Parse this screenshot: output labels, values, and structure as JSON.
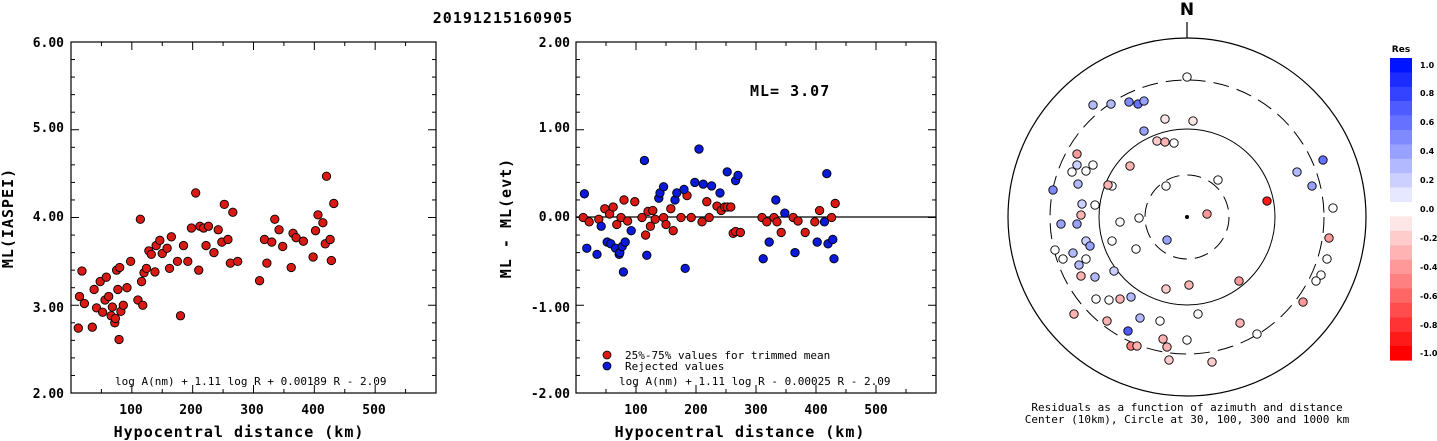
{
  "event_id": "20191215160905",
  "ml_label": "ML= 3.07",
  "colors": {
    "trimmed": "#d91a14",
    "rejected": "#0a1ad8",
    "axis": "#000000"
  },
  "left_panel": {
    "ylabel": "ML(IASPEI)",
    "xlabel": "Hypocentral distance (km)",
    "formula": "log A(nm) + 1.11 log R + 0.00189 R - 2.09",
    "ytick_labels": [
      "2.00",
      "3.00",
      "4.00",
      "5.00",
      "6.00"
    ],
    "xtick_labels": [
      "100",
      "200",
      "300",
      "400",
      "500"
    ]
  },
  "middle_panel": {
    "ylabel": "ML - ML(evt)",
    "xlabel": "Hypocentral distance (km)",
    "formula": "log A(nm) + 1.11 log R - 0.00025 R - 2.09",
    "legend_trimmed": "25%-75% values for trimmed mean",
    "legend_rejected": "Rejected values",
    "ytick_labels": [
      "-2.00",
      "-1.00",
      "0.00",
      "1.00",
      "2.00"
    ],
    "xtick_labels": [
      "100",
      "200",
      "300",
      "400",
      "500"
    ]
  },
  "polar_panel": {
    "north_label": "N",
    "caption_line1": "Residuals as a function of azimuth and distance",
    "caption_line2": "Center (10km), Circle at 30, 100, 300 and 1000 km",
    "colorbar_title": "Res",
    "colorbar_labels": [
      "1.0",
      "0.8",
      "0.6",
      "0.4",
      "0.2",
      "0.0",
      "-0.2",
      "-0.4",
      "-0.6",
      "-0.8",
      "-1.0"
    ]
  },
  "chart_data": [
    {
      "type": "scatter",
      "title": "20191215160905",
      "xlabel": "Hypocentral distance (km)",
      "ylabel": "ML(IASPEI)",
      "xlim": [
        0,
        600
      ],
      "ylim": [
        2.0,
        6.0
      ],
      "annotation": "log A(nm) + 1.11 log R + 0.00189 R - 2.09",
      "points": [
        [
          12,
          2.74
        ],
        [
          14,
          3.1
        ],
        [
          18,
          3.39
        ],
        [
          22,
          3.02
        ],
        [
          35,
          2.75
        ],
        [
          38,
          3.18
        ],
        [
          42,
          2.97
        ],
        [
          48,
          3.27
        ],
        [
          52,
          2.92
        ],
        [
          56,
          3.06
        ],
        [
          58,
          3.32
        ],
        [
          62,
          3.1
        ],
        [
          66,
          2.88
        ],
        [
          68,
          2.98
        ],
        [
          72,
          2.8
        ],
        [
          73,
          2.85
        ],
        [
          75,
          3.4
        ],
        [
          77,
          3.18
        ],
        [
          79,
          2.61
        ],
        [
          80,
          3.43
        ],
        [
          82,
          2.93
        ],
        [
          86,
          3.0
        ],
        [
          92,
          3.2
        ],
        [
          98,
          3.5
        ],
        [
          110,
          3.06
        ],
        [
          114,
          3.98
        ],
        [
          116,
          3.27
        ],
        [
          118,
          3.0
        ],
        [
          120,
          3.37
        ],
        [
          124,
          3.42
        ],
        [
          128,
          3.62
        ],
        [
          132,
          3.58
        ],
        [
          138,
          3.38
        ],
        [
          140,
          3.68
        ],
        [
          146,
          3.74
        ],
        [
          150,
          3.59
        ],
        [
          158,
          3.65
        ],
        [
          162,
          3.42
        ],
        [
          165,
          3.78
        ],
        [
          175,
          3.5
        ],
        [
          180,
          2.88
        ],
        [
          185,
          3.68
        ],
        [
          192,
          3.5
        ],
        [
          198,
          3.88
        ],
        [
          205,
          4.28
        ],
        [
          210,
          3.4
        ],
        [
          212,
          3.9
        ],
        [
          218,
          3.88
        ],
        [
          222,
          3.68
        ],
        [
          226,
          3.9
        ],
        [
          235,
          3.6
        ],
        [
          242,
          3.86
        ],
        [
          248,
          3.72
        ],
        [
          252,
          4.15
        ],
        [
          258,
          3.75
        ],
        [
          262,
          3.48
        ],
        [
          266,
          4.06
        ],
        [
          274,
          3.5
        ],
        [
          310,
          3.28
        ],
        [
          318,
          3.75
        ],
        [
          322,
          3.48
        ],
        [
          330,
          3.72
        ],
        [
          335,
          3.98
        ],
        [
          342,
          3.86
        ],
        [
          348,
          3.67
        ],
        [
          362,
          3.43
        ],
        [
          365,
          3.82
        ],
        [
          370,
          3.77
        ],
        [
          382,
          3.73
        ],
        [
          398,
          3.55
        ],
        [
          402,
          3.85
        ],
        [
          406,
          4.03
        ],
        [
          414,
          3.94
        ],
        [
          418,
          3.7
        ],
        [
          420,
          4.47
        ],
        [
          426,
          3.75
        ],
        [
          428,
          3.51
        ],
        [
          432,
          4.16
        ]
      ]
    },
    {
      "type": "scatter",
      "xlabel": "Hypocentral distance (km)",
      "ylabel": "ML - ML(evt)",
      "xlim": [
        0,
        600
      ],
      "ylim": [
        -2.0,
        2.0
      ],
      "annotation": "ML= 3.07",
      "reference_line": 0.0,
      "series": [
        {
          "name": "25%-75% values for trimmed mean",
          "color": "#d91a14",
          "points": [
            [
              12,
              0.0
            ],
            [
              22,
              -0.05
            ],
            [
              38,
              -0.02
            ],
            [
              48,
              0.1
            ],
            [
              56,
              0.04
            ],
            [
              62,
              0.12
            ],
            [
              68,
              -0.08
            ],
            [
              75,
              0.0
            ],
            [
              80,
              0.2
            ],
            [
              86,
              -0.04
            ],
            [
              98,
              0.18
            ],
            [
              110,
              0.0
            ],
            [
              116,
              -0.2
            ],
            [
              120,
              0.07
            ],
            [
              124,
              -0.1
            ],
            [
              128,
              0.08
            ],
            [
              132,
              -0.02
            ],
            [
              146,
              0.0
            ],
            [
              150,
              -0.08
            ],
            [
              158,
              0.1
            ],
            [
              162,
              -0.15
            ],
            [
              175,
              0.0
            ],
            [
              185,
              0.25
            ],
            [
              192,
              0.0
            ],
            [
              210,
              -0.05
            ],
            [
              218,
              0.18
            ],
            [
              222,
              0.0
            ],
            [
              235,
              0.13
            ],
            [
              242,
              0.08
            ],
            [
              248,
              0.12
            ],
            [
              252,
              0.12
            ],
            [
              258,
              0.12
            ],
            [
              262,
              -0.18
            ],
            [
              266,
              -0.16
            ],
            [
              274,
              -0.17
            ],
            [
              310,
              0.0
            ],
            [
              318,
              -0.05
            ],
            [
              330,
              0.0
            ],
            [
              335,
              -0.05
            ],
            [
              342,
              -0.17
            ],
            [
              362,
              0.0
            ],
            [
              370,
              -0.04
            ],
            [
              382,
              -0.17
            ],
            [
              398,
              -0.05
            ],
            [
              406,
              0.08
            ],
            [
              426,
              0.0
            ],
            [
              432,
              0.16
            ]
          ]
        },
        {
          "name": "Rejected values",
          "color": "#0a1ad8",
          "points": [
            [
              14,
              0.27
            ],
            [
              18,
              -0.35
            ],
            [
              35,
              -0.42
            ],
            [
              42,
              -0.1
            ],
            [
              52,
              -0.28
            ],
            [
              58,
              -0.3
            ],
            [
              66,
              -0.35
            ],
            [
              72,
              -0.42
            ],
            [
              73,
              -0.4
            ],
            [
              77,
              -0.33
            ],
            [
              79,
              -0.62
            ],
            [
              82,
              -0.28
            ],
            [
              92,
              -0.15
            ],
            [
              114,
              0.65
            ],
            [
              118,
              -0.43
            ],
            [
              138,
              0.22
            ],
            [
              140,
              0.28
            ],
            [
              146,
              0.35
            ],
            [
              165,
              0.2
            ],
            [
              168,
              0.28
            ],
            [
              180,
              0.32
            ],
            [
              182,
              -0.58
            ],
            [
              198,
              0.4
            ],
            [
              205,
              0.78
            ],
            [
              212,
              0.38
            ],
            [
              226,
              0.36
            ],
            [
              240,
              0.28
            ],
            [
              252,
              0.52
            ],
            [
              266,
              0.42
            ],
            [
              270,
              0.48
            ],
            [
              312,
              -0.47
            ],
            [
              322,
              -0.28
            ],
            [
              333,
              0.2
            ],
            [
              348,
              0.05
            ],
            [
              365,
              -0.4
            ],
            [
              402,
              -0.28
            ],
            [
              414,
              -0.05
            ],
            [
              418,
              0.5
            ],
            [
              420,
              -0.3
            ],
            [
              428,
              -0.25
            ],
            [
              430,
              -0.47
            ]
          ]
        }
      ]
    }
  ]
}
